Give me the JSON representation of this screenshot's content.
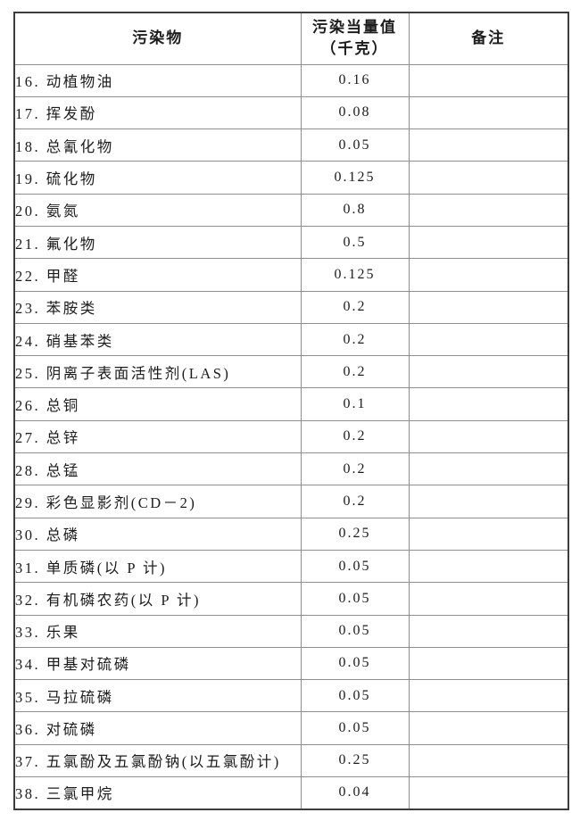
{
  "table": {
    "columns": [
      {
        "label": "污染物"
      },
      {
        "label_line1": "污染当量值",
        "label_line2": "（千克）"
      },
      {
        "label": "备注"
      }
    ],
    "rows": [
      {
        "pollutant": "16. 动植物油",
        "value": "0.16",
        "remark": ""
      },
      {
        "pollutant": "17. 挥发酚",
        "value": "0.08",
        "remark": ""
      },
      {
        "pollutant": "18. 总氰化物",
        "value": "0.05",
        "remark": ""
      },
      {
        "pollutant": "19. 硫化物",
        "value": "0.125",
        "remark": ""
      },
      {
        "pollutant": "20. 氨氮",
        "value": "0.8",
        "remark": ""
      },
      {
        "pollutant": "21. 氟化物",
        "value": "0.5",
        "remark": ""
      },
      {
        "pollutant": "22. 甲醛",
        "value": "0.125",
        "remark": ""
      },
      {
        "pollutant": "23. 苯胺类",
        "value": "0.2",
        "remark": ""
      },
      {
        "pollutant": "24. 硝基苯类",
        "value": "0.2",
        "remark": ""
      },
      {
        "pollutant": "25. 阴离子表面活性剂(LAS)",
        "value": "0.2",
        "remark": ""
      },
      {
        "pollutant": "26. 总铜",
        "value": "0.1",
        "remark": ""
      },
      {
        "pollutant": "27. 总锌",
        "value": "0.2",
        "remark": ""
      },
      {
        "pollutant": "28. 总锰",
        "value": "0.2",
        "remark": ""
      },
      {
        "pollutant": "29. 彩色显影剂(CD－2)",
        "value": "0.2",
        "remark": ""
      },
      {
        "pollutant": "30. 总磷",
        "value": "0.25",
        "remark": ""
      },
      {
        "pollutant": "31. 单质磷(以 P 计)",
        "value": "0.05",
        "remark": ""
      },
      {
        "pollutant": "32. 有机磷农药(以 P 计)",
        "value": "0.05",
        "remark": ""
      },
      {
        "pollutant": "33. 乐果",
        "value": "0.05",
        "remark": ""
      },
      {
        "pollutant": "34. 甲基对硫磷",
        "value": "0.05",
        "remark": ""
      },
      {
        "pollutant": "35. 马拉硫磷",
        "value": "0.05",
        "remark": ""
      },
      {
        "pollutant": "36. 对硫磷",
        "value": "0.05",
        "remark": ""
      },
      {
        "pollutant": "37. 五氯酚及五氯酚钠(以五氯酚计)",
        "value": "0.25",
        "remark": ""
      },
      {
        "pollutant": "38. 三氯甲烷",
        "value": "0.04",
        "remark": ""
      }
    ]
  },
  "colors": {
    "outer_border": "#3d3d3d",
    "inner_border": "#8f8f8f",
    "text": "#1c1c1c",
    "background": "#ffffff"
  }
}
